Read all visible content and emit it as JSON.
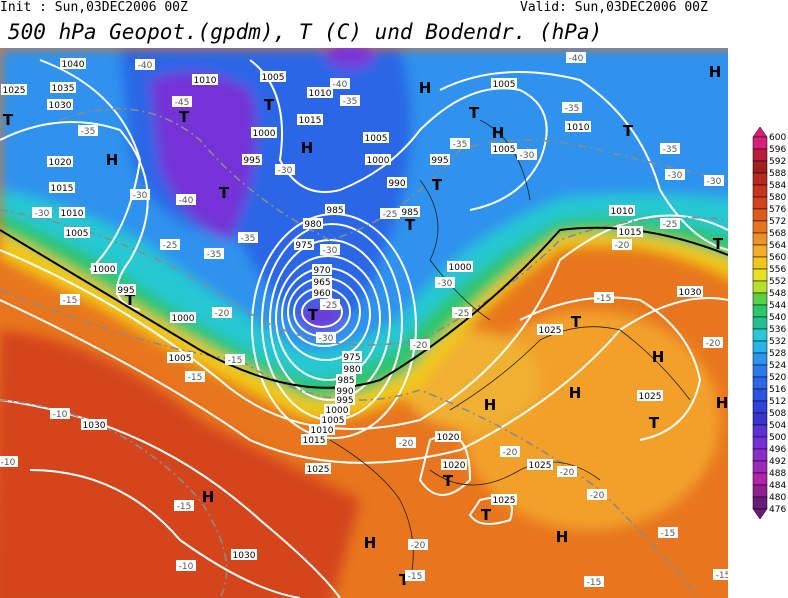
{
  "header": {
    "init": "Init : Sun,03DEC2006 00Z",
    "valid": "Valid: Sun,03DEC2006 00Z",
    "title": "500 hPa Geopot.(gpdm), T (C) und Bodendr. (hPa)"
  },
  "colorbar": {
    "labels": [
      "600",
      "596",
      "592",
      "588",
      "584",
      "580",
      "576",
      "572",
      "568",
      "564",
      "560",
      "556",
      "552",
      "548",
      "544",
      "540",
      "536",
      "532",
      "528",
      "524",
      "520",
      "516",
      "512",
      "508",
      "504",
      "500",
      "496",
      "492",
      "488",
      "484",
      "480",
      "476"
    ]
  },
  "map": {
    "labels": [
      "H",
      "H",
      "H",
      "H",
      "H",
      "H",
      "H",
      "H",
      "H",
      "H",
      "H",
      "H",
      "T",
      "T",
      "T",
      "T",
      "T",
      "T",
      "T",
      "T",
      "T",
      "T",
      "T",
      "T",
      "T",
      "T",
      "T",
      "T",
      "1040",
      "1025",
      "1035",
      "1030",
      "1020",
      "1015",
      "1010",
      "1005",
      "1000",
      "995",
      "1000",
      "1005",
      "1010",
      "1005",
      "1010",
      "1015",
      "1000",
      "995",
      "1005",
      "1000",
      "995",
      "990",
      "985",
      "980",
      "975",
      "985",
      "970",
      "965",
      "960",
      "975",
      "980",
      "985",
      "990",
      "995",
      "1000",
      "1005",
      "1010",
      "1015",
      "1000",
      "1005",
      "1005",
      "1010",
      "1010",
      "1015",
      "1030",
      "1025",
      "1025",
      "1020",
      "1020",
      "1025",
      "1025",
      "1025",
      "1030",
      "1030",
      "-40",
      "-40",
      "-45",
      "-35",
      "-35",
      "-35",
      "-30",
      "-35",
      "-35",
      "-40",
      "-30",
      "-30",
      "-40",
      "-30",
      "-30",
      "-30",
      "-25",
      "-35",
      "-35",
      "-30",
      "-25",
      "-25",
      "-20",
      "-30",
      "-25",
      "-20",
      "-25",
      "-30",
      "-20",
      "-15",
      "-15",
      "-15",
      "-15",
      "-20",
      "-20",
      "-20",
      "-20",
      "-20",
      "-15",
      "-10",
      "-10",
      "-10",
      "-20",
      "-15",
      "-15",
      "-15",
      "-15"
    ]
  }
}
